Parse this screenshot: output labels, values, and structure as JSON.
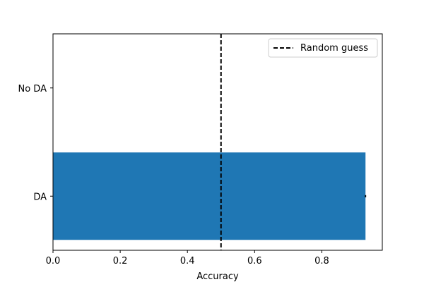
{
  "chart_data": {
    "type": "bar",
    "orientation": "horizontal",
    "categories": [
      "DA",
      "No DA"
    ],
    "values": [
      0.93,
      0.0
    ],
    "error": [
      0.002,
      0.0
    ],
    "bar_color": "#1f77b4",
    "xlabel": "Accuracy",
    "ylabel": "",
    "title": "",
    "xlim": [
      0,
      0.98
    ],
    "xticks": [
      0.0,
      0.2,
      0.4,
      0.6,
      0.8
    ],
    "xtick_labels": [
      "0.0",
      "0.2",
      "0.4",
      "0.6",
      "0.8"
    ],
    "reference_line": {
      "x": 0.5,
      "style": "dashed",
      "color": "#000000",
      "label": "Random guess"
    },
    "legend": {
      "placement": "top-right",
      "entries": [
        "Random guess"
      ]
    },
    "grid": false
  }
}
